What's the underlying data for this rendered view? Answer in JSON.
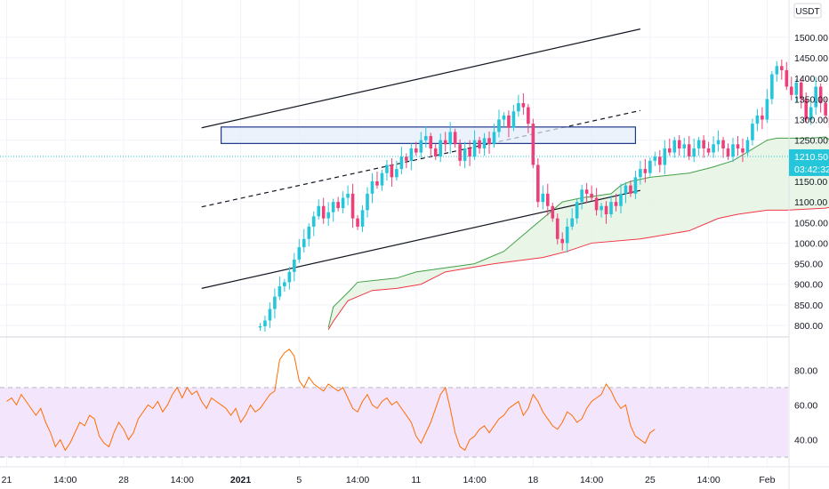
{
  "chart_data": [
    {
      "type": "candlestick",
      "title": "",
      "y_axis_unit": "USDT",
      "ylim": [
        785,
        1530
      ],
      "y_ticks": [
        "1500.00",
        "1450.00",
        "1400.00",
        "1350.00",
        "1300.00",
        "1250.00",
        "1200.00",
        "1150.00",
        "1100.00",
        "1050.00",
        "1000.00",
        "950.00",
        "900.00",
        "850.00",
        "800.00"
      ],
      "x_ticks": [
        "21",
        "14:00",
        "28",
        "14:00",
        "2021",
        "5",
        "14:00",
        "11",
        "14:00",
        "18",
        "14:00",
        "25",
        "14:00",
        "Feb"
      ],
      "x_tick_index": [
        0,
        12,
        24,
        36,
        48,
        60,
        72,
        84,
        96,
        108,
        120,
        132,
        144,
        156
      ],
      "current_price": "1210.50",
      "countdown": "03:42:32",
      "candles_start_index": 52,
      "candles_start_open": 795,
      "closes": [
        798,
        812,
        840,
        870,
        895,
        905,
        930,
        960,
        990,
        1010,
        1040,
        1065,
        1090,
        1060,
        1075,
        1100,
        1085,
        1110,
        1120,
        1060,
        1040,
        1080,
        1120,
        1150,
        1140,
        1170,
        1190,
        1160,
        1180,
        1210,
        1200,
        1230,
        1220,
        1250,
        1260,
        1230,
        1210,
        1250,
        1240,
        1270,
        1240,
        1200,
        1230,
        1210,
        1250,
        1230,
        1255,
        1240,
        1270,
        1300,
        1310,
        1280,
        1320,
        1340,
        1330,
        1290,
        1190,
        1100,
        1120,
        1090,
        1060,
        1010,
        1000,
        1040,
        1060,
        1100,
        1130,
        1120,
        1110,
        1080,
        1090,
        1070,
        1100,
        1090,
        1120,
        1140,
        1120,
        1160,
        1180,
        1170,
        1200,
        1210,
        1190,
        1230,
        1220,
        1250,
        1230,
        1240,
        1210,
        1230,
        1250,
        1230,
        1220,
        1240,
        1250,
        1230,
        1210,
        1240,
        1230,
        1220,
        1250,
        1290,
        1310,
        1300,
        1350,
        1410,
        1430,
        1420,
        1380,
        1360,
        1390,
        1350,
        1300,
        1330,
        1380,
        1340,
        1310,
        1280,
        1250,
        1260,
        1200,
        1180,
        1150,
        1110,
        1140,
        1160,
        1190,
        1205,
        1210.5
      ],
      "uptrend_channel": {
        "upper": [
          [
            40,
            1280
          ],
          [
            130,
            1520
          ]
        ],
        "lower": [
          [
            40,
            890
          ],
          [
            130,
            1128
          ]
        ],
        "mid": [
          [
            40,
            1088
          ],
          [
            130,
            1322
          ]
        ]
      },
      "resistance_zone": [
        1242,
        1282
      ],
      "resistance_zone_x": [
        44,
        129
      ],
      "lagging_green_line": [
        [
          66,
          795
        ],
        [
          67,
          845
        ],
        [
          70,
          880
        ],
        [
          72,
          905
        ],
        [
          80,
          915
        ],
        [
          84,
          930
        ],
        [
          90,
          940
        ],
        [
          96,
          950
        ],
        [
          102,
          980
        ],
        [
          108,
          1040
        ],
        [
          112,
          1080
        ],
        [
          114,
          1100
        ],
        [
          118,
          1110
        ],
        [
          124,
          1120
        ],
        [
          126,
          1140
        ],
        [
          128,
          1150
        ],
        [
          132,
          1160
        ],
        [
          140,
          1170
        ],
        [
          145,
          1185
        ],
        [
          149,
          1200
        ],
        [
          156,
          1250
        ],
        [
          158,
          1255
        ],
        [
          165,
          1255
        ],
        [
          168,
          1258
        ],
        [
          170,
          1240
        ],
        [
          172,
          1238
        ]
      ],
      "lagging_red_line": [
        [
          66,
          790
        ],
        [
          67,
          810
        ],
        [
          70,
          860
        ],
        [
          75,
          885
        ],
        [
          80,
          890
        ],
        [
          85,
          900
        ],
        [
          90,
          930
        ],
        [
          95,
          940
        ],
        [
          100,
          950
        ],
        [
          110,
          965
        ],
        [
          115,
          980
        ],
        [
          120,
          1000
        ],
        [
          130,
          1010
        ],
        [
          140,
          1030
        ],
        [
          146,
          1060
        ],
        [
          150,
          1070
        ],
        [
          156,
          1080
        ],
        [
          160,
          1080
        ],
        [
          168,
          1085
        ],
        [
          170,
          1090
        ],
        [
          172,
          1100
        ]
      ],
      "rsi": {
        "ylim": [
          26,
          97
        ],
        "ticks": [
          "80.00",
          "60.00",
          "40.00"
        ],
        "band": [
          30,
          70
        ],
        "values": [
          62,
          64,
          60,
          66,
          62,
          58,
          54,
          58,
          50,
          44,
          36,
          40,
          34,
          38,
          44,
          50,
          48,
          54,
          52,
          42,
          38,
          36,
          44,
          50,
          46,
          40,
          44,
          52,
          56,
          60,
          58,
          62,
          56,
          60,
          66,
          70,
          64,
          70,
          66,
          68,
          62,
          58,
          64,
          62,
          60,
          58,
          54,
          58,
          50,
          54,
          60,
          56,
          58,
          62,
          66,
          68,
          86,
          90,
          92,
          88,
          74,
          70,
          76,
          72,
          70,
          68,
          72,
          70,
          68,
          70,
          64,
          58,
          56,
          62,
          66,
          60,
          58,
          62,
          64,
          60,
          62,
          58,
          54,
          50,
          42,
          38,
          44,
          50,
          58,
          66,
          70,
          58,
          44,
          36,
          34,
          40,
          42,
          46,
          48,
          44,
          48,
          52,
          54,
          58,
          60,
          62,
          54,
          58,
          66,
          62,
          56,
          52,
          48,
          46,
          50,
          56,
          54,
          50,
          52,
          58,
          62,
          64,
          66,
          72,
          68,
          62,
          58,
          60,
          48,
          42,
          40,
          38,
          44,
          46
        ]
      }
    }
  ]
}
